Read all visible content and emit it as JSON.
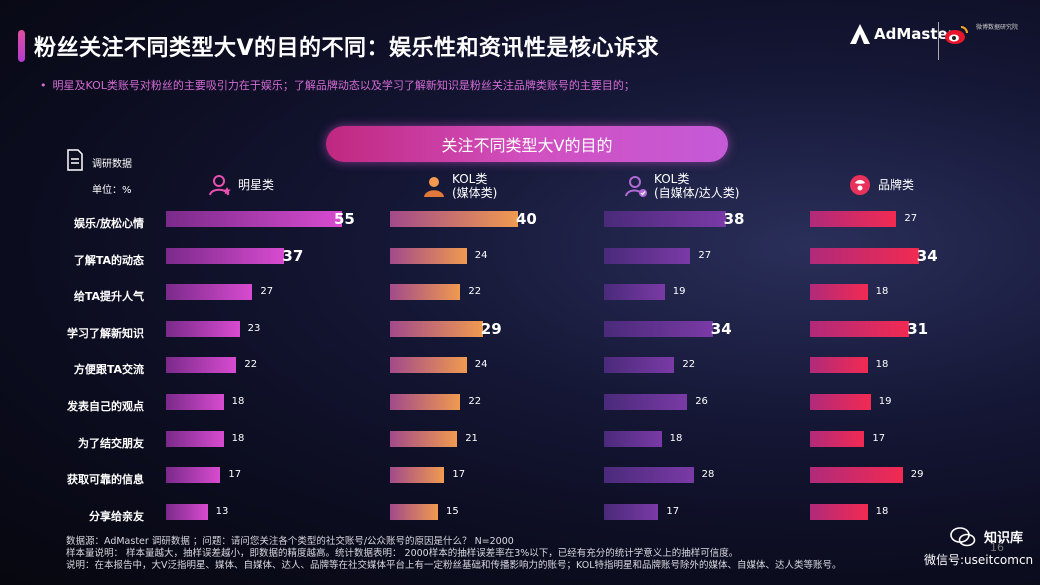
{
  "header": {
    "title": "粉丝关注不同类型大V的目的不同：娱乐性和资讯性是核心诉求",
    "subtitle_bullet": "•",
    "subtitle": "明星及KOL类账号对粉丝的主要吸引力在于娱乐；了解品牌动态以及学习了解新知识是粉丝关注品牌类账号的主要目的；",
    "logo_admaster": "AdMaster",
    "logo_weibo_text": "微博数据研究院"
  },
  "chart_header": {
    "pill": "关注不同类型大V的目的",
    "source_label": "调研数据",
    "unit_label": "单位：%"
  },
  "colors": {
    "star": "#c03ab8",
    "kol": "#e08a48",
    "self": "#7e3aa8",
    "brand": "#e02a56"
  },
  "chart_data": {
    "type": "bar",
    "categories": [
      "娱乐/放松心情",
      "了解TA的动态",
      "给TA提升人气",
      "学习了解新知识",
      "方便跟TA交流",
      "发表自己的观点",
      "为了结交朋友",
      "获取可靠的信息",
      "分享给亲友"
    ],
    "series": [
      {
        "name": "明星类",
        "name_line2": "",
        "icon": "star-person-icon",
        "values": [
          55,
          37,
          27,
          23,
          22,
          18,
          18,
          17,
          13
        ],
        "highlight": [
          0,
          1
        ]
      },
      {
        "name": "KOL类",
        "name_line2": "(媒体类)",
        "icon": "kol-person-icon",
        "values": [
          40,
          24,
          22,
          29,
          24,
          22,
          21,
          17,
          15
        ],
        "highlight": [
          0,
          3
        ]
      },
      {
        "name": "KOL类",
        "name_line2": "(自媒体/达人类)",
        "icon": "verified-person-icon",
        "values": [
          38,
          27,
          19,
          34,
          22,
          26,
          18,
          28,
          17
        ],
        "highlight": [
          0,
          3
        ]
      },
      {
        "name": "品牌类",
        "name_line2": "",
        "icon": "brand-icon",
        "values": [
          27,
          34,
          18,
          31,
          18,
          19,
          17,
          29,
          18
        ],
        "highlight": [
          1,
          3
        ]
      }
    ]
  },
  "footer": {
    "line1": "数据源：AdMaster 调研数据 ；问题：请问您关注各个类型的社交账号/公众账号的原因是什么？ N=2000",
    "line2": "样本量说明：  样本量越大，抽样误差越小，即数据的精度越高。统计数据表明： 2000样本的抽样误差率在3%以下，已经有充分的统计学意义上的抽样可信度。",
    "line3": "说明：在本报告中，大V泛指明星、媒体、自媒体、达人、品牌等在社交媒体平台上有一定粉丝基础和传播影响力的账号；KOL特指明星和品牌账号除外的媒体、自媒体、达人类等账号。"
  },
  "watermark": {
    "brand": "知识库",
    "wechat": "微信号:useitcomcn",
    "page": "16"
  }
}
